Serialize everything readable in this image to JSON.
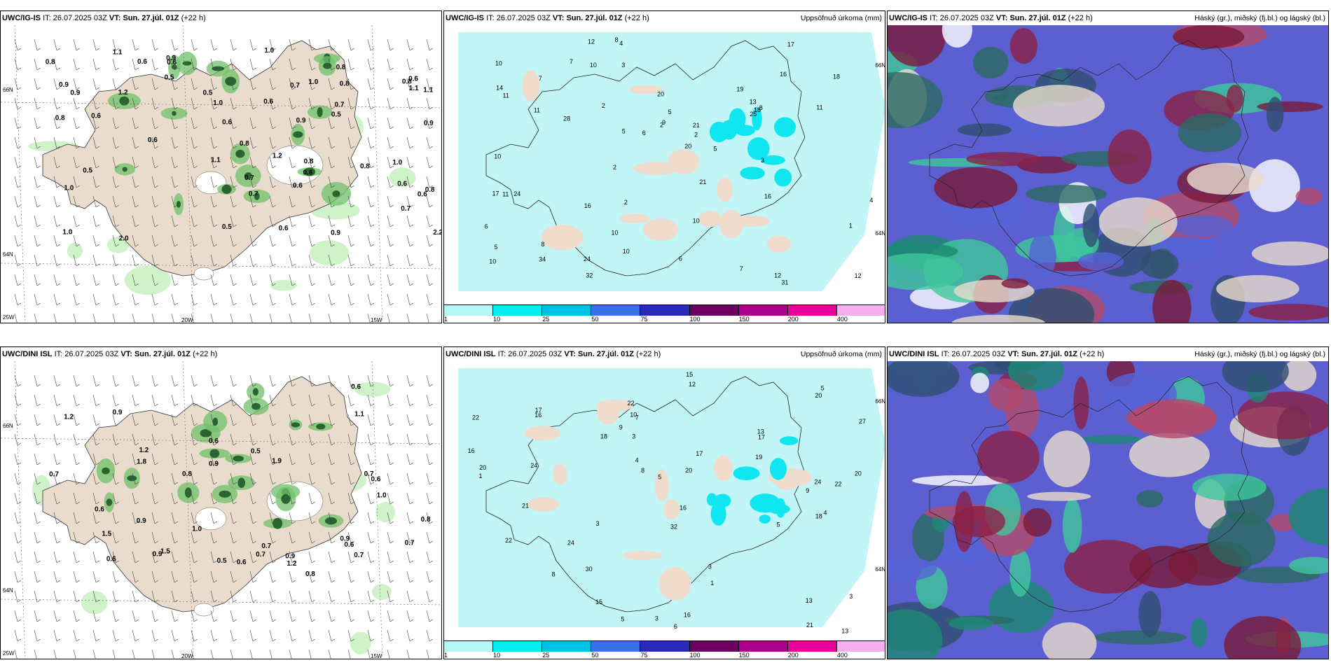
{
  "panels": [
    {
      "model": "UWC/IG-IS",
      "it_label": "IT:",
      "it_value": "26.07.2025 03Z",
      "vt_label": "VT:",
      "vt_value": "Sun. 27.júl. 01Z",
      "lead": "(+22 h)",
      "title_right": "",
      "kind": "precip-wind",
      "axis_labels": [
        "66N",
        "64N",
        "25W",
        "20W",
        "15W"
      ],
      "values": [
        "1.0",
        "0.7",
        "0.5",
        "0.6",
        "0.8",
        "0.8",
        "1.1",
        "0.6",
        "1.1",
        "0.8",
        "1.2",
        "0.6",
        "0.8",
        "0.8",
        "1.0",
        "1.2",
        "0.7",
        "0.7",
        "0.9",
        "0.6",
        "0.6",
        "1.1",
        "0.9",
        "0.5",
        "0.6",
        "0.8",
        "1.0",
        "0.6",
        "0.5",
        "0.9",
        "0.8",
        "0.7",
        "0.9",
        "0.9",
        "0.8",
        "0.9",
        "0.6",
        "0.6",
        "1.0",
        "0.6",
        "0.7",
        "0.6",
        "0.5",
        "1.1",
        "1.0",
        "2.0",
        "2.2",
        "1.0",
        "0.5",
        "0.6",
        "0.8"
      ]
    },
    {
      "model": "UWC/IG-IS",
      "it_label": "IT:",
      "it_value": "26.07.2025 03Z",
      "vt_label": "VT:",
      "vt_value": "Sun. 27.júl. 01Z",
      "lead": "(+22 h)",
      "title_right": "Uppsöfnuð úrkoma (mm)",
      "kind": "accum",
      "axis_labels": [
        "66N",
        "64N"
      ],
      "values": [
        "3",
        "5",
        "5",
        "6",
        "4",
        "12",
        "11",
        "9",
        "10",
        "12",
        "8",
        "7",
        "11",
        "6",
        "5",
        "16",
        "2",
        "13",
        "18",
        "18",
        "31",
        "24",
        "17",
        "34",
        "32",
        "21",
        "28",
        "21",
        "20",
        "16",
        "24",
        "17",
        "19",
        "16",
        "20",
        "25",
        "10",
        "11",
        "8",
        "4",
        "7",
        "10",
        "11",
        "12",
        "14",
        "10",
        "10",
        "5",
        "3",
        "2",
        "2",
        "2",
        "6",
        "8",
        "7",
        "1",
        "2",
        "10",
        "10"
      ],
      "colorbar_ticks": [
        "1",
        "10",
        "25",
        "50",
        "75",
        "100",
        "150",
        "200",
        "400"
      ],
      "colorbar_colors": [
        "#b7f7f7",
        "#00eeee",
        "#00c0e6",
        "#3a70ea",
        "#2a2ab8",
        "#6a0060",
        "#a8008c",
        "#e8009a",
        "#f4b0ee"
      ]
    },
    {
      "model": "UWC/IG-IS",
      "it_label": "IT:",
      "it_value": "26.07.2025 03Z",
      "vt_label": "VT:",
      "vt_value": "Sun. 27.júl. 01Z",
      "lead": "(+22 h)",
      "title_right": "Háský (gr.), miðský (fj.bl.) og lágský (bl.)",
      "kind": "clouds"
    },
    {
      "model": "UWC/DINI ISL",
      "it_label": "IT:",
      "it_value": "26.07.2025 03Z",
      "vt_label": "VT:",
      "vt_value": "Sun. 27.júl. 01Z",
      "lead": "(+22 h)",
      "title_right": "",
      "kind": "precip-wind",
      "axis_labels": [
        "66N",
        "64N",
        "25W",
        "20W",
        "15W"
      ],
      "values": [
        "0.7",
        "0.6",
        "0.5",
        "0.9",
        "0.6",
        "1.0",
        "0.9",
        "0.6",
        "0.5",
        "0.7",
        "1.9",
        "1.2",
        "0.7",
        "1.5",
        "0.7",
        "0.6",
        "0.7",
        "1.2",
        "0.9",
        "0.7",
        "0.6",
        "0.8",
        "1.1",
        "1.2",
        "0.9",
        "0.6",
        "0.8",
        "0.6",
        "0.9",
        "1.0",
        "1.8",
        "0.8",
        "0.9",
        "1.5"
      ]
    },
    {
      "model": "UWC/DINI ISL",
      "it_label": "IT:",
      "it_value": "26.07.2025 03Z",
      "vt_label": "VT:",
      "vt_value": "Sun. 27.júl. 01Z",
      "lead": "(+22 h)",
      "title_right": "Uppsöfnuð úrkoma (mm)",
      "kind": "accum",
      "axis_labels": [
        "66N",
        "64N"
      ],
      "values": [
        "3",
        "17",
        "13",
        "13",
        "16",
        "16",
        "10",
        "9",
        "20",
        "20",
        "12",
        "8",
        "4",
        "5",
        "5",
        "3",
        "3",
        "18",
        "17",
        "30",
        "32",
        "20",
        "24",
        "21",
        "18",
        "27",
        "22",
        "22",
        "20",
        "19",
        "17",
        "24",
        "15",
        "16",
        "22",
        "24",
        "15",
        "16",
        "21",
        "22",
        "9",
        "7",
        "13",
        "5",
        "3",
        "1",
        "1",
        "4",
        "5",
        "6",
        "8",
        "3"
      ],
      "colorbar_ticks": [
        "1",
        "10",
        "25",
        "50",
        "75",
        "100",
        "150",
        "200",
        "400"
      ],
      "colorbar_colors": [
        "#b7f7f7",
        "#00eeee",
        "#00c0e6",
        "#3a70ea",
        "#2a2ab8",
        "#6a0060",
        "#a8008c",
        "#e8009a",
        "#f4b0ee"
      ]
    },
    {
      "model": "UWC/DINI ISL",
      "it_label": "IT:",
      "it_value": "26.07.2025 03Z",
      "vt_label": "VT:",
      "vt_value": "Sun. 27.júl. 01Z",
      "lead": "(+22 h)",
      "title_right": "Háský (gr.), miðský (fj.bl.) og lágský (bl.)",
      "kind": "clouds"
    }
  ]
}
